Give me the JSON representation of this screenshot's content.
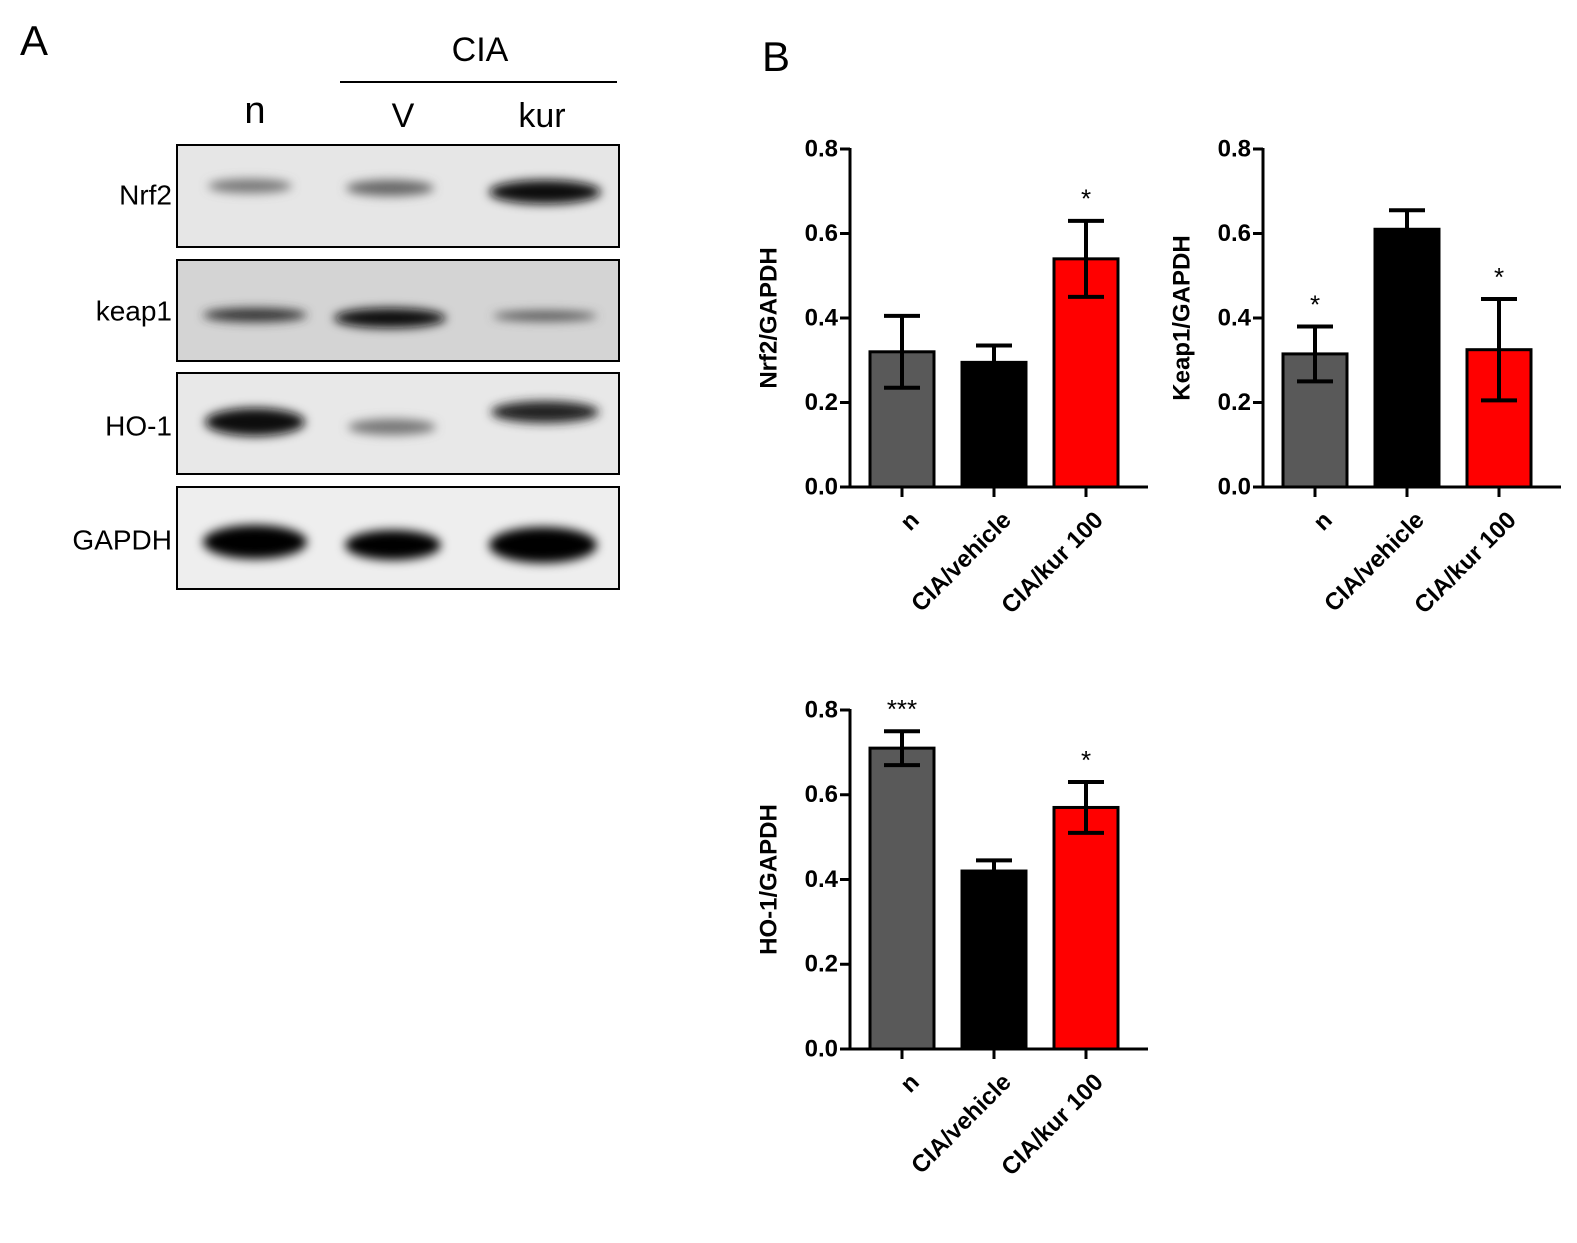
{
  "panel_labels": [
    "A",
    "B"
  ],
  "blot": {
    "group_label": "CIA",
    "lanes": [
      "n",
      "V",
      "kur"
    ],
    "rows": [
      "Nrf2",
      "keap1",
      "HO-1",
      "GAPDH"
    ]
  },
  "chart_data": [
    {
      "type": "bar",
      "y_label": "Nrf2/GAPDH",
      "categories": [
        "n",
        "CIA/vehicle",
        "CIA/kur 100"
      ],
      "values": [
        0.32,
        0.295,
        0.54
      ],
      "errors": [
        0.085,
        0.04,
        0.09
      ],
      "colors": [
        "#595959",
        "#000000",
        "#ff0000"
      ],
      "annotations": [
        null,
        null,
        "*"
      ],
      "ylim": [
        0,
        0.8
      ],
      "yticks": [
        {
          "value": 0,
          "label": "0.0"
        },
        0.2,
        0.4,
        0.6,
        0.8
      ]
    },
    {
      "type": "bar",
      "y_label": "Keap1/GAPDH",
      "categories": [
        "n",
        "CIA/vehicle",
        "CIA/kur 100"
      ],
      "values": [
        0.315,
        0.61,
        0.325
      ],
      "errors": [
        0.065,
        0.045,
        0.12
      ],
      "colors": [
        "#595959",
        "#000000",
        "#ff0000"
      ],
      "annotations": [
        "*",
        null,
        "*"
      ],
      "ylim": [
        0,
        0.8
      ],
      "yticks": [
        {
          "value": 0,
          "label": "0.0"
        },
        0.2,
        0.4,
        0.6,
        0.8
      ]
    },
    {
      "type": "bar",
      "y_label": "HO-1/GAPDH",
      "categories": [
        "n",
        "CIA/vehicle",
        "CIA/kur 100"
      ],
      "values": [
        0.71,
        0.42,
        0.57
      ],
      "errors": [
        0.04,
        0.025,
        0.06
      ],
      "colors": [
        "#595959",
        "#000000",
        "#ff0000"
      ],
      "annotations": [
        "***",
        null,
        "*"
      ],
      "ylim": [
        0,
        0.8
      ],
      "yticks": [
        {
          "value": 0,
          "label": "0.0"
        },
        0.2,
        0.4,
        0.6,
        0.8
      ]
    }
  ]
}
